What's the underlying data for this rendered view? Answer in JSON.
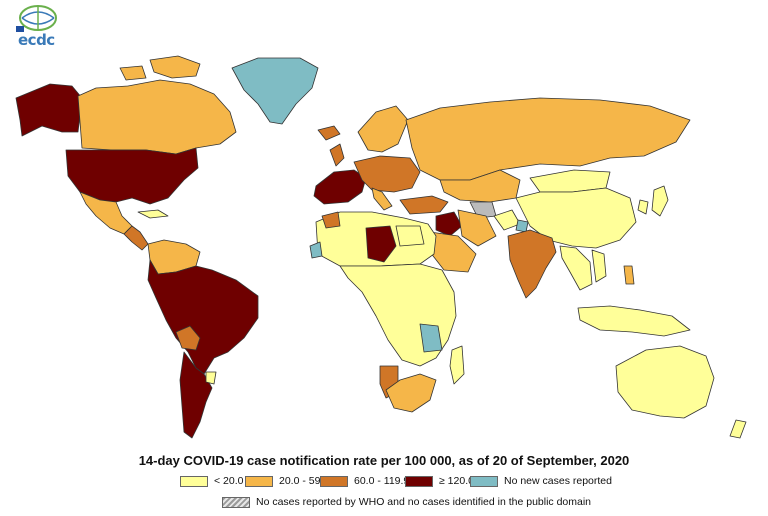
{
  "title": "14-day COVID-19 case notification rate per 100 000, as of 20 of September, 2020",
  "logo": {
    "text": "ecdc",
    "icon": "ecdc-globe-logo"
  },
  "colors": {
    "ocean": "#ffffff",
    "border": "#333333",
    "lt20": "#ffff99",
    "c20_60": "#f5b649",
    "c60_120": "#d07627",
    "gte120": "#6f0000",
    "no_new": "#7fbcc4",
    "no_data": "#bbbbbb"
  },
  "legend": [
    {
      "label": "< 20.0",
      "color": "#ffff99"
    },
    {
      "label": "20.0 - 59.9",
      "color": "#f5b649"
    },
    {
      "label": "60.0 - 119.9",
      "color": "#d07627"
    },
    {
      "label": "≥ 120.0",
      "color": "#6f0000"
    },
    {
      "label": "No new cases reported",
      "color": "#7fbcc4"
    }
  ],
  "legend_note": {
    "label": "No cases reported by WHO and no cases identified in the public domain",
    "pattern": "hatched-grey"
  }
}
